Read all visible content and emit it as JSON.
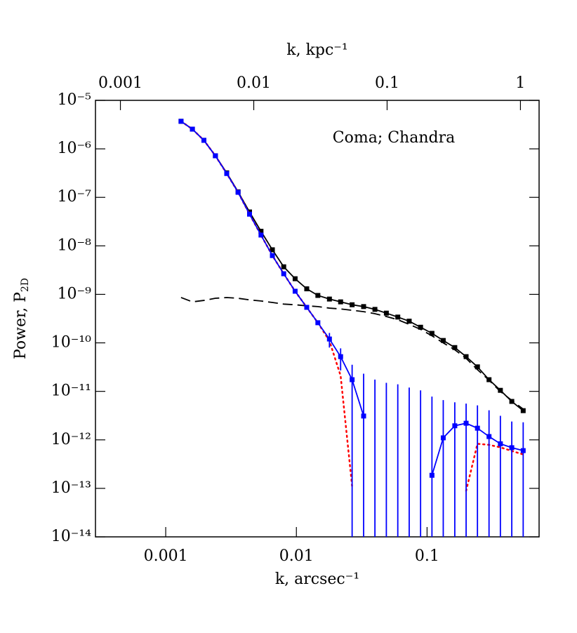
{
  "chart_data": {
    "type": "line",
    "xlabel": "k, arcsec⁻¹",
    "x2label": "k, kpc⁻¹",
    "ylabel": "Power, P",
    "ylabel_sub": "2D",
    "annotation": "Coma; Chandra",
    "log_x": true,
    "log_y": true,
    "xlim": [
      0.00029,
      0.72
    ],
    "x2lim": [
      0.00065,
      1.38
    ],
    "ylim": [
      1e-14,
      1e-05
    ],
    "xticks": [
      0.001,
      0.01,
      0.1
    ],
    "x2ticks": [
      0.001,
      0.01,
      0.1,
      1
    ],
    "yticks": [
      {
        "value": 1e-05,
        "label": "10⁻⁵"
      },
      {
        "value": 1e-06,
        "label": "10⁻⁶"
      },
      {
        "value": 1e-07,
        "label": "10⁻⁷"
      },
      {
        "value": 1e-08,
        "label": "10⁻⁸"
      },
      {
        "value": 1e-09,
        "label": "10⁻⁹"
      },
      {
        "value": 1e-10,
        "label": "10⁻¹⁰"
      },
      {
        "value": 1e-11,
        "label": "10⁻¹¹"
      },
      {
        "value": 1e-12,
        "label": "10⁻¹²"
      },
      {
        "value": 1e-13,
        "label": "10⁻¹³"
      },
      {
        "value": 1e-14,
        "label": "10⁻¹⁴"
      }
    ],
    "x": [
      0.00131,
      0.0016,
      0.00196,
      0.0024,
      0.00293,
      0.00358,
      0.00438,
      0.00536,
      0.00655,
      0.008,
      0.00978,
      0.012,
      0.0146,
      0.0179,
      0.0218,
      0.0267,
      0.0327,
      0.0399,
      0.0488,
      0.0597,
      0.073,
      0.0892,
      0.109,
      0.133,
      0.163,
      0.199,
      0.243,
      0.298,
      0.364,
      0.445,
      0.544
    ],
    "series": [
      {
        "color": "#000000",
        "style": "dashed",
        "marker": "none",
        "values": [
          8.6e-10,
          7e-10,
          7.5e-10,
          8.3e-10,
          8.6e-10,
          8.3e-10,
          7.7e-10,
          7.3e-10,
          6.8e-10,
          6.3e-10,
          6.1e-10,
          5.8e-10,
          5.6e-10,
          5.2e-10,
          5e-10,
          4.7e-10,
          4.4e-10,
          4e-10,
          3.5e-10,
          3e-10,
          2.4e-10,
          1.9e-10,
          1.4e-10,
          1e-10,
          7.2e-11,
          4.8e-11,
          2.8e-11,
          1.7e-11,
          9.9e-12,
          6.5e-12,
          4.3e-12
        ]
      },
      {
        "color": "#000000",
        "style": "solid",
        "marker": "square",
        "values": [
          3.7e-06,
          2.55e-06,
          1.5e-06,
          7.2e-07,
          3.2e-07,
          1.3e-07,
          5e-08,
          2e-08,
          8.3e-09,
          3.7e-09,
          2.1e-09,
          1.3e-09,
          9.5e-10,
          8e-10,
          7e-10,
          6.1e-10,
          5.6e-10,
          4.9e-10,
          4.1e-10,
          3.4e-10,
          2.8e-10,
          2.1e-10,
          1.57e-10,
          1.12e-10,
          8e-11,
          5.2e-11,
          3.2e-11,
          1.74e-11,
          1.05e-11,
          6.2e-12,
          4e-12
        ]
      },
      {
        "color": "#ff0000",
        "style": "dotted",
        "marker": "none",
        "values": [
          3.7e-06,
          2.55e-06,
          1.5e-06,
          7.2e-07,
          3.1e-07,
          1.27e-07,
          4.5e-08,
          1.67e-08,
          6.3e-09,
          2.66e-09,
          1.16e-09,
          5.4e-10,
          2.6e-10,
          1.1e-10,
          2.1e-11,
          1.1e-13,
          null,
          null,
          null,
          null,
          null,
          null,
          null,
          null,
          null,
          8.9e-14,
          8.3e-13,
          7.9e-13,
          7e-13,
          5.9e-13,
          5e-13
        ]
      },
      {
        "color": "#0000ff",
        "style": "solid",
        "marker": "square",
        "values": [
          3.7e-06,
          2.55e-06,
          1.5e-06,
          7.2e-07,
          3.1e-07,
          1.27e-07,
          4.5e-08,
          1.67e-08,
          6.3e-09,
          2.66e-09,
          1.16e-09,
          5.4e-10,
          2.6e-10,
          1.2e-10,
          5.2e-11,
          1.74e-11,
          3.1e-12,
          null,
          null,
          null,
          null,
          null,
          1.86e-13,
          1.1e-12,
          1.95e-12,
          2.2e-12,
          1.74e-12,
          1.17e-12,
          8.3e-13,
          6.9e-13,
          6e-13
        ],
        "errors": [
          null,
          null,
          null,
          null,
          null,
          null,
          null,
          null,
          null,
          null,
          null,
          null,
          null,
          4e-11,
          2.5e-11,
          1.8e-11,
          2e-11,
          1.75e-11,
          1.5e-11,
          1.4e-11,
          1.2e-11,
          1.05e-11,
          7.6e-12,
          5.5e-12,
          4e-12,
          3.4e-12,
          3.4e-12,
          2.9e-12,
          2.3e-12,
          1.7e-12,
          1.7e-12
        ]
      }
    ]
  }
}
